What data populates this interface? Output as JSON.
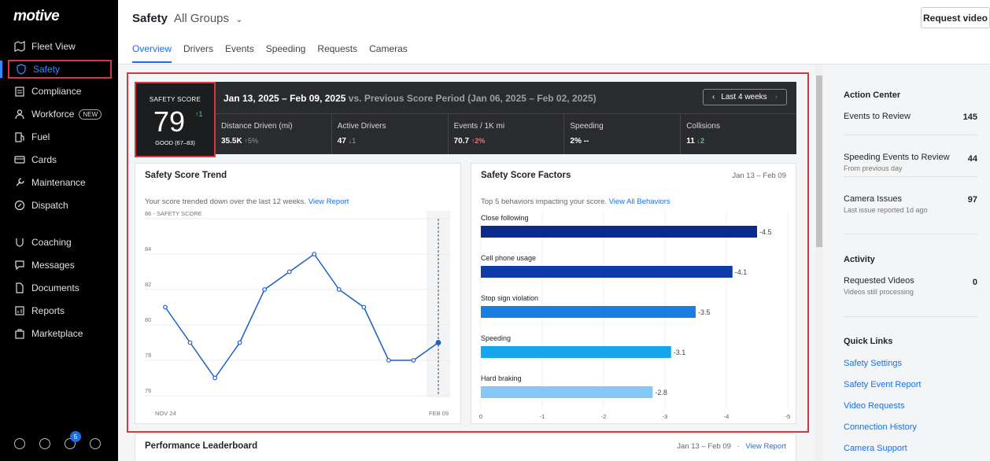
{
  "sidebar": {
    "logo": "motive",
    "items": [
      {
        "label": "Fleet View",
        "icon": "map-icon"
      },
      {
        "label": "Safety",
        "icon": "shield-icon"
      },
      {
        "label": "Compliance",
        "icon": "clipboard-icon"
      },
      {
        "label": "Workforce",
        "icon": "person-icon",
        "badge": "NEW"
      },
      {
        "label": "Fuel",
        "icon": "fuel-icon"
      },
      {
        "label": "Cards",
        "icon": "card-icon"
      },
      {
        "label": "Maintenance",
        "icon": "wrench-icon"
      },
      {
        "label": "Dispatch",
        "icon": "dispatch-icon"
      },
      {
        "label": "Coaching",
        "icon": "coaching-icon"
      },
      {
        "label": "Messages",
        "icon": "message-icon"
      },
      {
        "label": "Documents",
        "icon": "document-icon"
      },
      {
        "label": "Reports",
        "icon": "reports-icon"
      },
      {
        "label": "Marketplace",
        "icon": "marketplace-icon"
      }
    ],
    "notification_count": "5"
  },
  "header": {
    "title": "Safety",
    "group": "All Groups",
    "request_video": "Request video",
    "tabs": [
      "Overview",
      "Drivers",
      "Events",
      "Speeding",
      "Requests",
      "Cameras"
    ]
  },
  "scorebar": {
    "score_label": "SAFETY SCORE",
    "score": "79",
    "score_delta": "↑1",
    "score_rating": "GOOD (67–83)",
    "period": "Jan 13, 2025 – Feb 09, 2025",
    "vs": "vs. Previous Score Period (Jan 06, 2025 – Feb 02, 2025)",
    "range_button": "Last 4 weeks",
    "metrics": [
      {
        "label": "Distance Driven (mi)",
        "value": "35.5K",
        "delta": "↑5%",
        "delta_type": "neutral"
      },
      {
        "label": "Active Drivers",
        "value": "47",
        "delta": "↓1",
        "delta_type": "neutral"
      },
      {
        "label": "Events / 1K mi",
        "value": "70.7",
        "delta": "↑2%",
        "delta_type": "up"
      },
      {
        "label": "Speeding",
        "value": "2%",
        "delta": "--",
        "delta_type": "plain"
      },
      {
        "label": "Collisions",
        "value": "11",
        "delta": "↓2",
        "delta_type": "down"
      }
    ]
  },
  "trend": {
    "title": "Safety Score Trend",
    "sub": "Your score trended down over the last 12 weeks.",
    "link": "View Report"
  },
  "factors": {
    "title": "Safety Score Factors",
    "date": "Jan 13 – Feb 09",
    "sub": "Top 5 behaviors impacting your score.",
    "link": "View All Behaviors"
  },
  "leaderboard": {
    "title": "Performance Leaderboard",
    "date": "Jan 13 – Feb 09",
    "link": "View Report"
  },
  "right_panel": {
    "action_center": "Action Center",
    "rows": [
      {
        "label": "Events to Review",
        "sub": "",
        "count": "145"
      },
      {
        "label": "Speeding Events to Review",
        "sub": "From previous day",
        "count": "44"
      },
      {
        "label": "Camera Issues",
        "sub": "Last issue reported 1d ago",
        "count": "97"
      }
    ],
    "activity": "Activity",
    "activity_rows": [
      {
        "label": "Requested Videos",
        "sub": "Videos still processing",
        "count": "0"
      }
    ],
    "quick_links_title": "Quick Links",
    "quick_links": [
      "Safety Settings",
      "Safety Event Report",
      "Video Requests",
      "Connection History",
      "Camera Support"
    ]
  },
  "chart_data": [
    {
      "type": "line",
      "title": "Safety Score Trend",
      "ylabel": "SAFETY SCORE",
      "ylim": [
        76,
        86
      ],
      "yticks": [
        76,
        78,
        80,
        82,
        84,
        86
      ],
      "x_labels": [
        "NOV 24",
        "FEB 09"
      ],
      "values": [
        81,
        79,
        77,
        79,
        82,
        83,
        84,
        82,
        81,
        78,
        78,
        79
      ],
      "color": "#1a5fc8"
    },
    {
      "type": "bar",
      "title": "Safety Score Factors",
      "orientation": "horizontal",
      "categories": [
        "Close following",
        "Cell phone usage",
        "Stop sign violation",
        "Speeding",
        "Hard braking"
      ],
      "values": [
        -4.5,
        -4.1,
        -3.5,
        -3.1,
        -2.8
      ],
      "labels": [
        "-4.5",
        "-4.1",
        "-3.5",
        "-3.1",
        "-2.8"
      ],
      "xlim": [
        0,
        -5
      ],
      "xticks": [
        "0",
        "-1",
        "-2",
        "-3",
        "-4",
        "-5"
      ],
      "colors": [
        "#0a2a8c",
        "#0d3ba8",
        "#1a7de0",
        "#17a6ec",
        "#85c8f5"
      ]
    }
  ]
}
